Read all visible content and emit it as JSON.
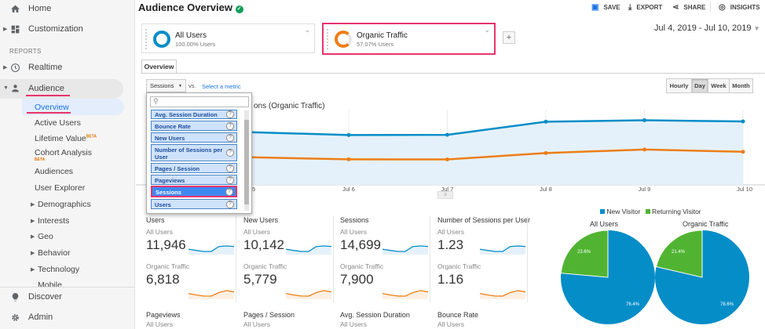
{
  "sidebar": {
    "home": "Home",
    "customization": "Customization",
    "reports_header": "REPORTS",
    "realtime": "Realtime",
    "audience": "Audience",
    "audience_items": [
      "Overview",
      "Active Users",
      "Lifetime Value",
      "Cohort Analysis",
      "Audiences",
      "User Explorer"
    ],
    "beta": "BETA",
    "expandable": [
      "Demographics",
      "Interests",
      "Geo",
      "Behavior",
      "Technology",
      "Mobile"
    ],
    "discover": "Discover",
    "admin": "Admin"
  },
  "header": {
    "title": "Audience Overview",
    "save": "SAVE",
    "export": "EXPORT",
    "share": "SHARE",
    "insights": "INSIGHTS"
  },
  "segments": [
    {
      "name": "All Users",
      "pct": "100.00% Users"
    },
    {
      "name": "Organic Traffic",
      "pct": "57.07% Users"
    }
  ],
  "add_segment": "+",
  "date_range": "Jul 4, 2019 - Jul 10, 2019",
  "tabs": [
    "Overview"
  ],
  "metric_select": {
    "value": "Sessions",
    "vs": "vs.",
    "select": "Select a metric"
  },
  "granularity": [
    "Hourly",
    "Day",
    "Week",
    "Month"
  ],
  "metric_dropdown": {
    "search_placeholder": "",
    "options": [
      "Avg. Session Duration",
      "Bounce Rate",
      "New Users",
      "Number of Sessions per User",
      "Pages / Session",
      "Pageviews",
      "Sessions",
      "Users"
    ],
    "selected": "Sessions"
  },
  "chart_legend_text": "ons (Organic Traffic)",
  "chart_data": {
    "type": "area",
    "x": [
      "Jul 4",
      "Jul 5",
      "Jul 6",
      "Jul 7",
      "Jul 8",
      "Jul 9",
      "Jul 10"
    ],
    "x_tick_labels": [
      "5",
      "Jul 6",
      "Jul 7",
      "Jul 8",
      "Jul 9",
      "Jul 10"
    ],
    "series": [
      {
        "name": "All Users",
        "values": [
          2230,
          2100,
          1990,
          1995,
          2520,
          2580,
          2530
        ],
        "color": "#058dc7"
      },
      {
        "name": "Organic Traffic",
        "values": [
          1200,
          1100,
          1020,
          1015,
          1270,
          1410,
          1320
        ],
        "color": "#ed7e17"
      }
    ],
    "ylim": [
      0,
      3000
    ],
    "grid": true
  },
  "metrics_row1": [
    {
      "title": "Users",
      "all_label": "All Users",
      "all_value": "11,946",
      "org_label": "Organic Traffic",
      "org_value": "6,818"
    },
    {
      "title": "New Users",
      "all_label": "All Users",
      "all_value": "10,142",
      "org_label": "Organic Traffic",
      "org_value": "5,779"
    },
    {
      "title": "Sessions",
      "all_label": "All Users",
      "all_value": "14,699",
      "org_label": "Organic Traffic",
      "org_value": "7,900"
    },
    {
      "title": "Number of Sessions per User",
      "all_label": "All Users",
      "all_value": "1.23",
      "org_label": "Organic Traffic",
      "org_value": "1.16"
    }
  ],
  "metrics_row2": [
    {
      "title": "Pageviews",
      "all_label": "All Users"
    },
    {
      "title": "Pages / Session",
      "all_label": "All Users"
    },
    {
      "title": "Avg. Session Duration",
      "all_label": "All Users"
    },
    {
      "title": "Bounce Rate",
      "all_label": "All Users"
    }
  ],
  "pie_legend": [
    {
      "label": "New Visitor",
      "color": "#058dc7"
    },
    {
      "label": "Returning Visitor",
      "color": "#50b432"
    }
  ],
  "pies": [
    {
      "title": "All Users",
      "new_pct": 76.4,
      "ret_pct": 23.6,
      "new_label": "76.4%",
      "ret_label": "23.6%"
    },
    {
      "title": "Organic Traffic",
      "new_pct": 78.6,
      "ret_pct": 21.4,
      "new_label": "78.6%",
      "ret_label": "21.4%"
    }
  ],
  "colors": {
    "accent": "#1a73e8",
    "blue": "#058dc7",
    "orange": "#ed7e17",
    "green": "#50b432",
    "highlight": "#e8336d"
  }
}
